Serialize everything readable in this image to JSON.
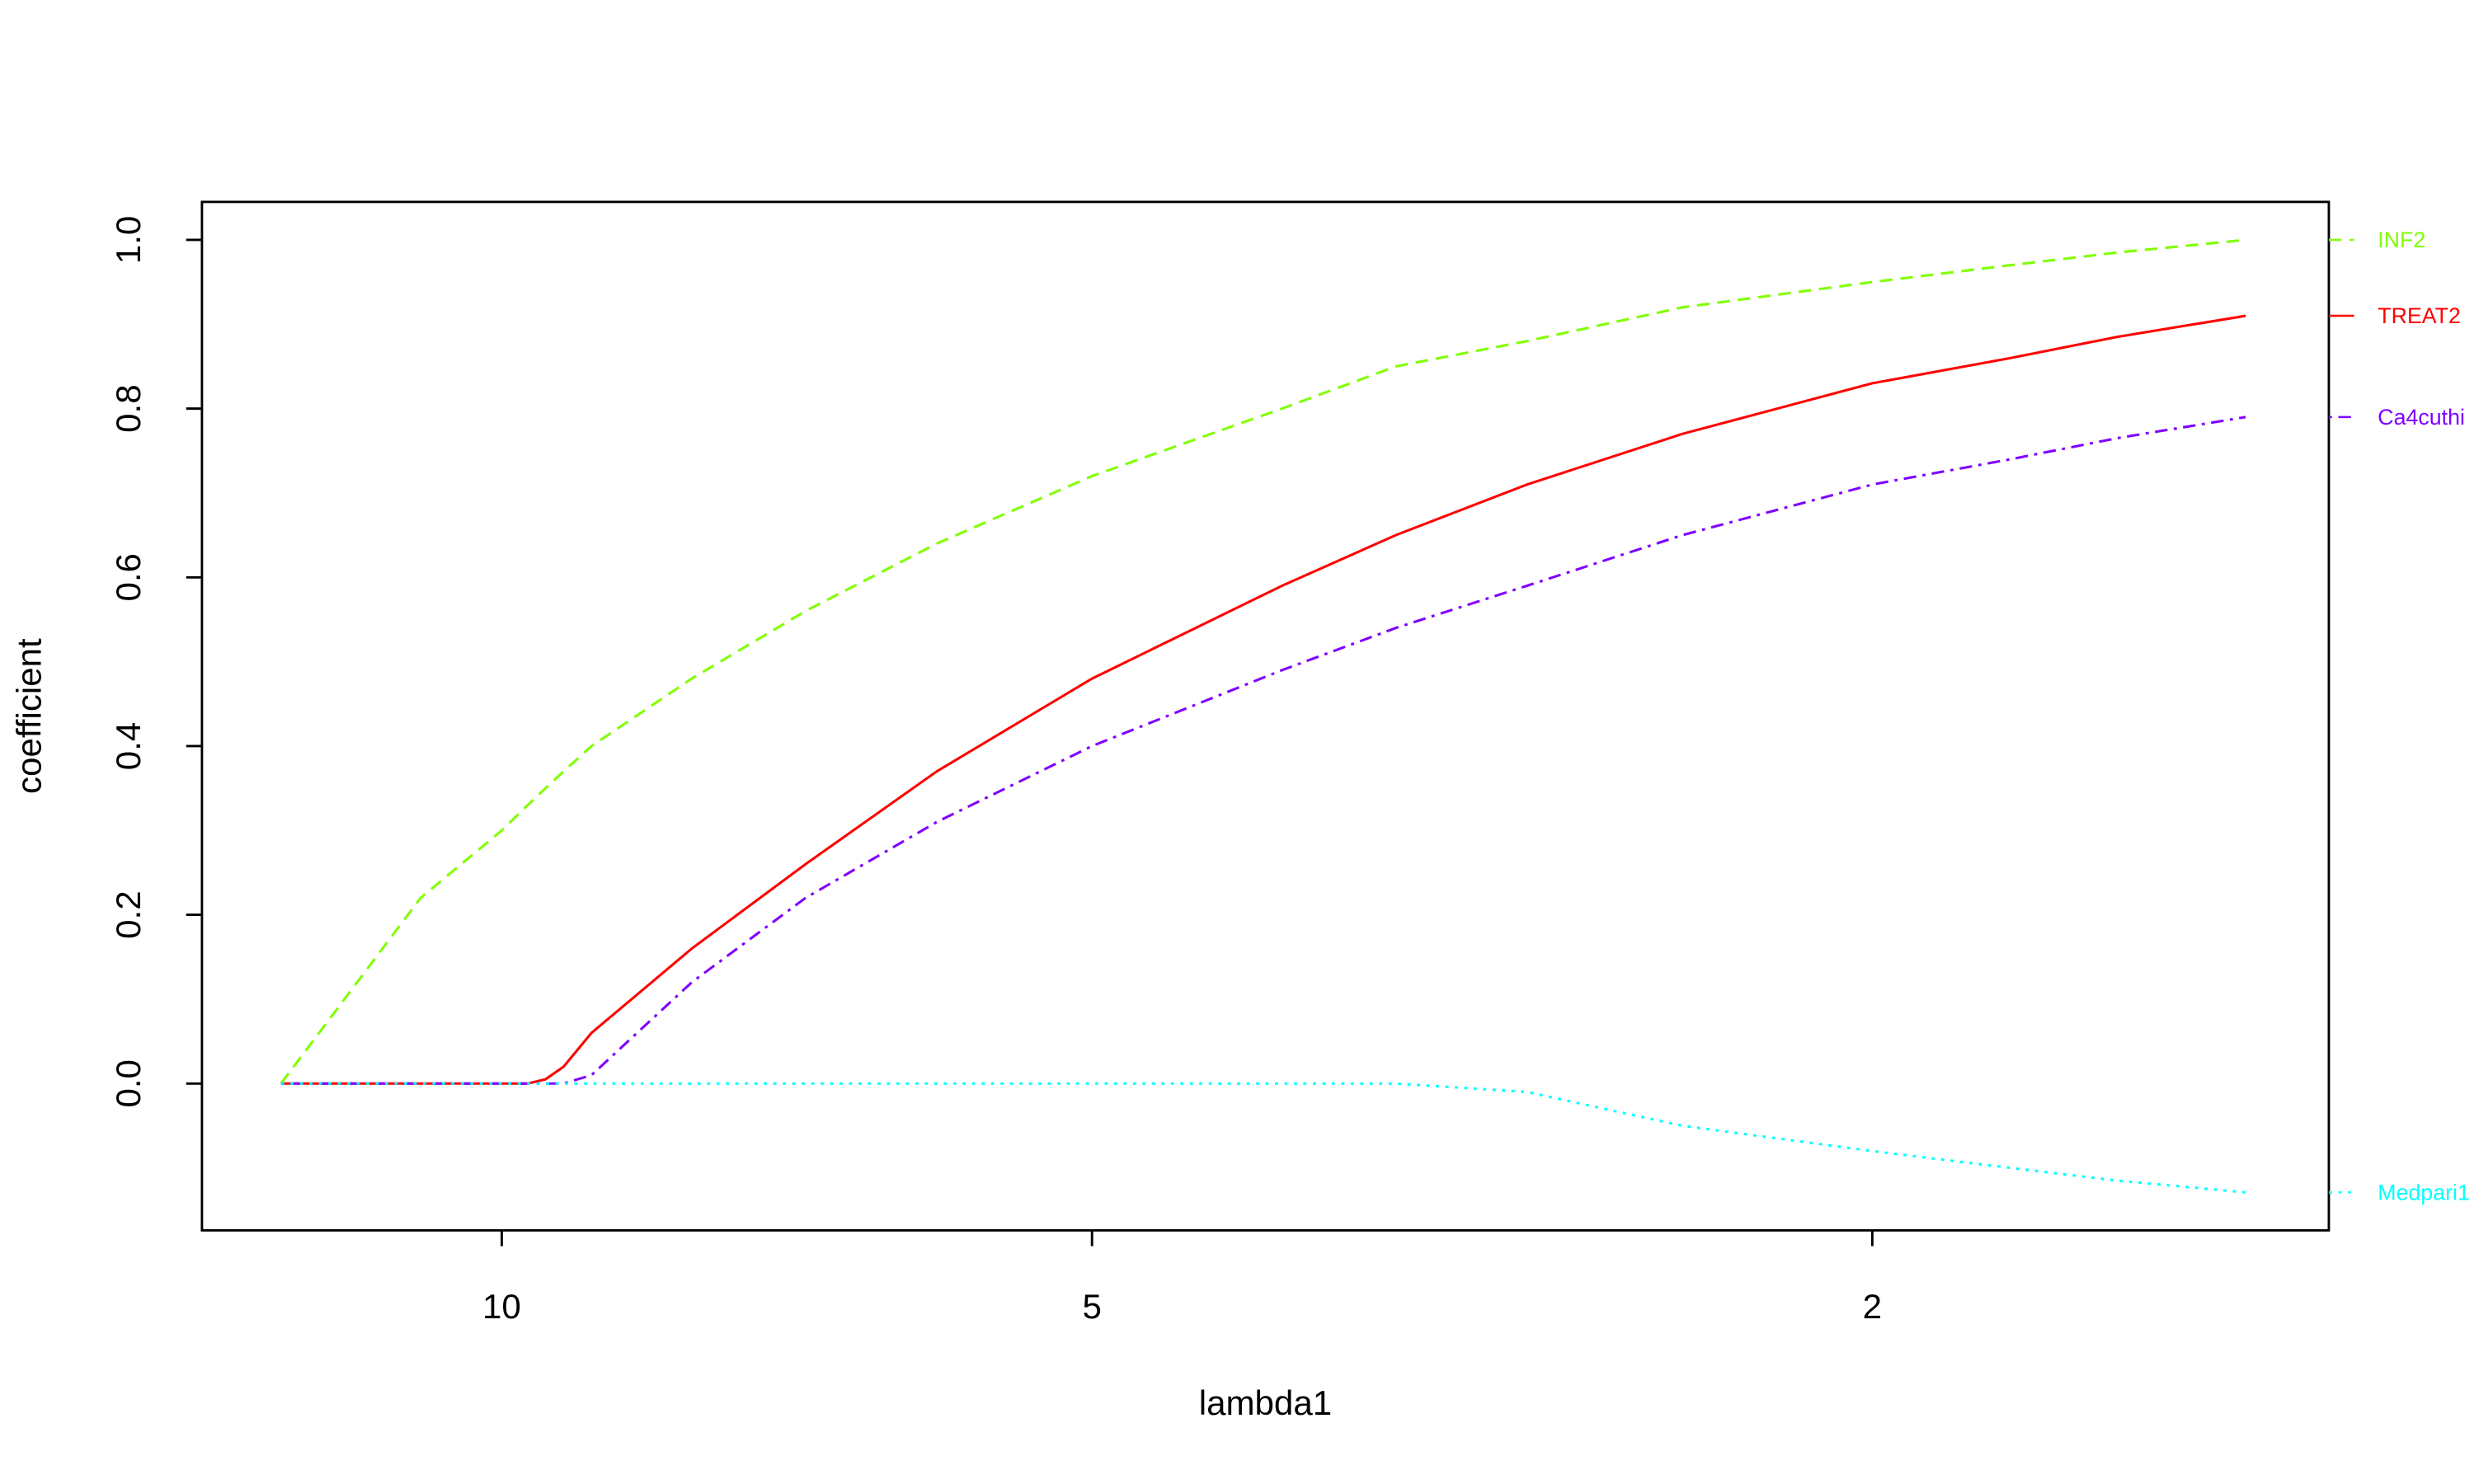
{
  "chart_data": {
    "type": "line",
    "x_label": "lambda1",
    "y_label": "coefficient",
    "xscale": "log",
    "x": [
      12.96,
      11,
      10,
      9.7,
      9.5,
      9.3,
      9,
      8,
      7,
      6,
      5,
      4,
      3.5,
      3,
      2.5,
      2,
      1.7,
      1.5,
      1.29
    ],
    "xlim": [
      14.22,
      1.17
    ],
    "xticks": [
      10,
      5,
      2
    ],
    "ylim": [
      -0.174,
      1.045
    ],
    "yticks": [
      {
        "value": 0,
        "label": "0.0"
      },
      {
        "value": 0.2,
        "label": "0.2"
      },
      {
        "value": 0.4,
        "label": "0.4"
      },
      {
        "value": 0.6,
        "label": "0.6"
      },
      {
        "value": 0.8,
        "label": "0.8"
      },
      {
        "value": 1,
        "label": "1.0"
      }
    ],
    "series": [
      {
        "name": "INF2",
        "color": "#80ff00",
        "linestyle": "dashed",
        "values": [
          0,
          0.22,
          0.3,
          0.33,
          0.35,
          0.37,
          0.4,
          0.48,
          0.56,
          0.64,
          0.72,
          0.8,
          0.85,
          0.88,
          0.92,
          0.95,
          0.97,
          0.985,
          1.0
        ]
      },
      {
        "name": "TREAT2",
        "color": "#ff0000",
        "linestyle": "solid",
        "values": [
          0,
          0,
          0,
          0,
          0.005,
          0.02,
          0.06,
          0.16,
          0.26,
          0.37,
          0.48,
          0.59,
          0.65,
          0.71,
          0.77,
          0.83,
          0.86,
          0.885,
          0.91
        ]
      },
      {
        "name": "Ca4cuthi",
        "color": "#8000ff",
        "linestyle": "dotdash",
        "values": [
          0,
          0,
          0,
          0,
          0,
          0,
          0.01,
          0.12,
          0.22,
          0.31,
          0.4,
          0.49,
          0.54,
          0.59,
          0.65,
          0.71,
          0.74,
          0.765,
          0.79
        ]
      },
      {
        "name": "Medpari1",
        "color": "#00ffff",
        "linestyle": "dotted",
        "values": [
          0,
          0,
          0,
          0,
          0,
          0,
          0,
          0,
          0,
          0,
          0,
          0,
          0,
          -0.01,
          -0.05,
          -0.08,
          -0.1,
          -0.115,
          -0.129
        ]
      }
    ]
  }
}
